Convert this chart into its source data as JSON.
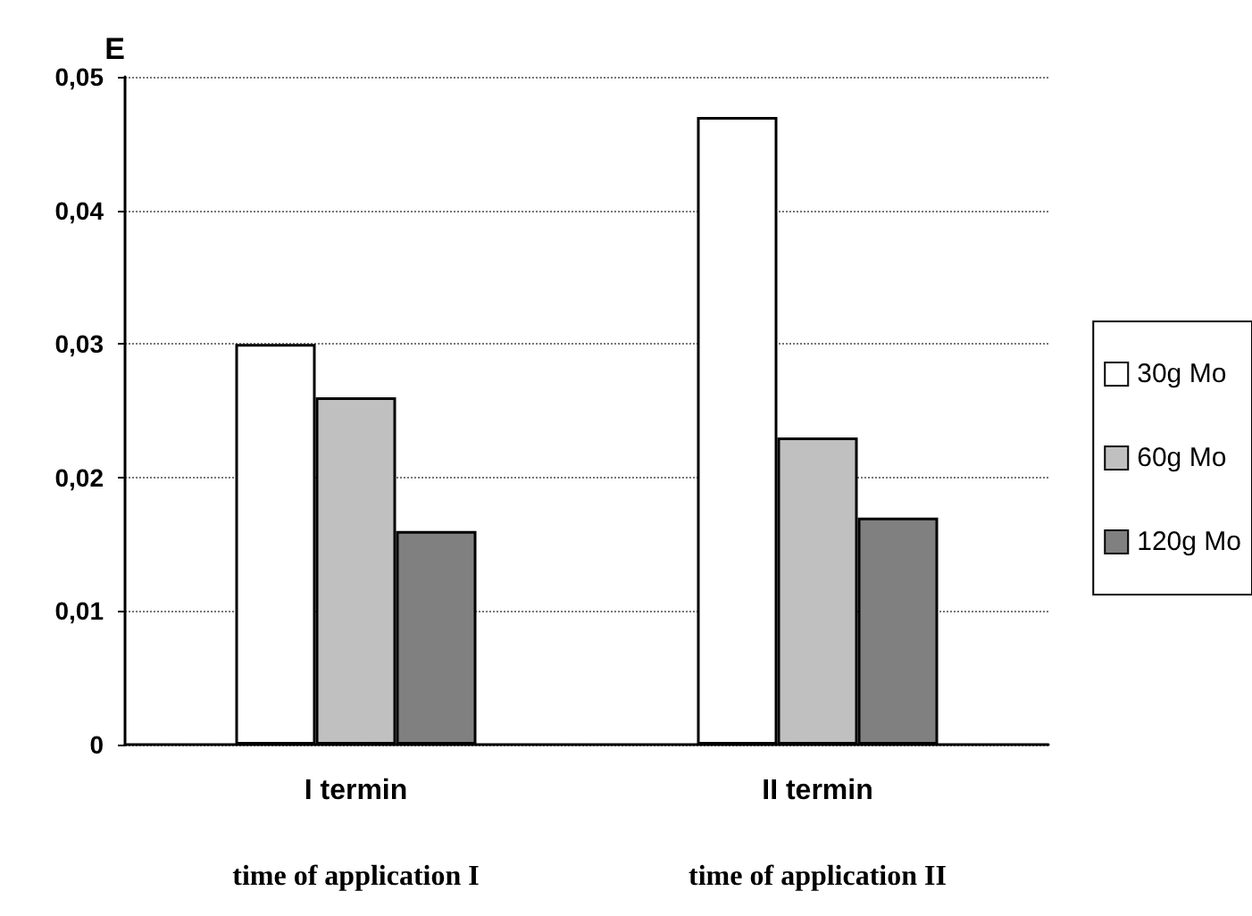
{
  "chart_data": {
    "type": "bar",
    "ylabel": "E",
    "categories": [
      "I termin",
      "II termin"
    ],
    "series": [
      {
        "name": "30g Mo",
        "color": "#ffffff",
        "values": [
          0.03,
          0.047
        ]
      },
      {
        "name": "60g Mo",
        "color": "#c0c0c0",
        "values": [
          0.026,
          0.023
        ]
      },
      {
        "name": "120g Mo",
        "color": "#808080",
        "values": [
          0.016,
          0.017
        ]
      }
    ],
    "ylim": [
      0,
      0.05
    ],
    "yticks": [
      0,
      {
        "value": 0.01,
        "label": "0,01"
      },
      {
        "value": 0.02,
        "label": "0,02"
      },
      {
        "value": 0.03,
        "label": "0,03"
      },
      {
        "value": 0.04,
        "label": "0,04"
      },
      {
        "value": 0.05,
        "label": "0,05"
      }
    ],
    "grid": "y",
    "legend": "right",
    "annotations": [
      "time of application I",
      "time of application II"
    ]
  }
}
